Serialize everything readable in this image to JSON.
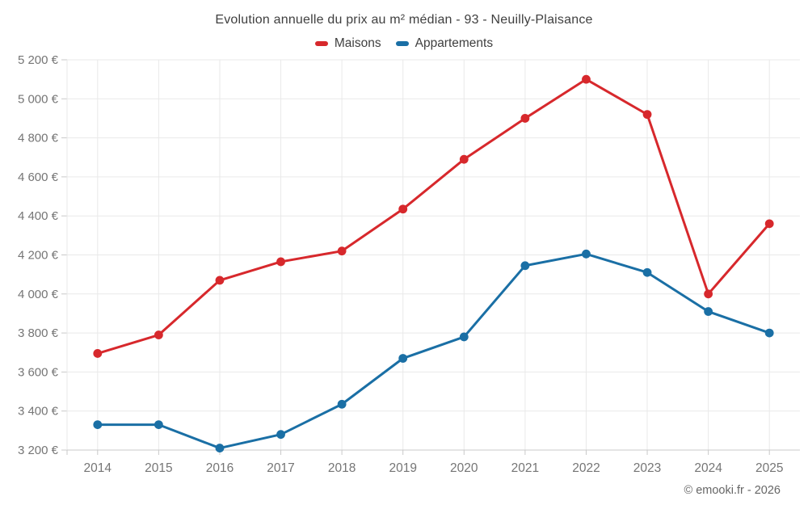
{
  "chart": {
    "title": "Evolution annuelle du prix au m² médian - 93 - Neuilly-Plaisance",
    "legend": [
      {
        "label": "Maisons",
        "color": "#d7282c"
      },
      {
        "label": "Appartements",
        "color": "#1a6fa5"
      }
    ]
  },
  "chart_data": {
    "type": "line",
    "title": "Evolution annuelle du prix au m² médian - 93 - Neuilly-Plaisance",
    "categories": [
      "2014",
      "2015",
      "2016",
      "2017",
      "2018",
      "2019",
      "2020",
      "2021",
      "2022",
      "2023",
      "2024",
      "2025"
    ],
    "series": [
      {
        "name": "Maisons",
        "color": "#d7282c",
        "values": [
          3695,
          3790,
          4070,
          4165,
          4220,
          4435,
          4690,
          4900,
          5100,
          4920,
          4000,
          4360
        ]
      },
      {
        "name": "Appartements",
        "color": "#1a6fa5",
        "values": [
          3330,
          3330,
          3210,
          3280,
          3435,
          3670,
          3780,
          4145,
          4205,
          4110,
          3910,
          3800
        ]
      }
    ],
    "xlabel": "",
    "ylabel": "",
    "ylim": [
      3200,
      5200
    ],
    "ytick_step": 200,
    "ytick_labels": [
      "3 200 €",
      "3 400 €",
      "3 600 €",
      "3 800 €",
      "4 000 €",
      "4 200 €",
      "4 400 €",
      "4 600 €",
      "4 800 €",
      "5 000 €",
      "5 200 €"
    ],
    "grid": true,
    "legend_position": "top"
  },
  "footer": {
    "attribution": "© emooki.fr - 2026"
  },
  "colors": {
    "background": "#ffffff",
    "grid": "#e9e9e9",
    "axis": "#c9c9c9",
    "tick_label": "#757575",
    "title_text": "#3f3f3f"
  }
}
